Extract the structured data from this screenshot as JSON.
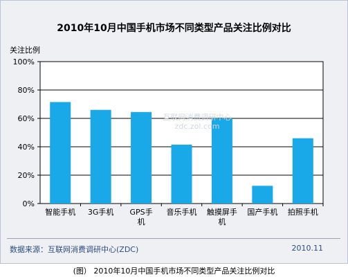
{
  "chart_data": {
    "type": "bar",
    "title": "2010年10月中国手机市场不同类型产品关注比例对比",
    "ylabel": "关注比例",
    "xlabel": "",
    "categories": [
      "智能手机",
      "3G手机",
      "GPS手机",
      "音乐手机",
      "触摸屏手机",
      "国产手机",
      "拍照手机"
    ],
    "values": [
      71.5,
      66.0,
      64.5,
      41.5,
      60.0,
      12.5,
      46.0
    ],
    "ylim": [
      0,
      100
    ],
    "yticks": [
      "0%",
      "20%",
      "40%",
      "60%",
      "80%",
      "100%"
    ],
    "grid": true,
    "legend": "none",
    "bar_color": "#19a8e8"
  },
  "footer": {
    "source": "数据来源：互联网消费调研中心(ZDC)",
    "date": "2010.11"
  },
  "watermark": {
    "line1": "互联网消费调研中心",
    "line2": "zdc.zol.com"
  },
  "caption": "(图） 2010年10月中国手机市场不同类型产品关注比例对比"
}
